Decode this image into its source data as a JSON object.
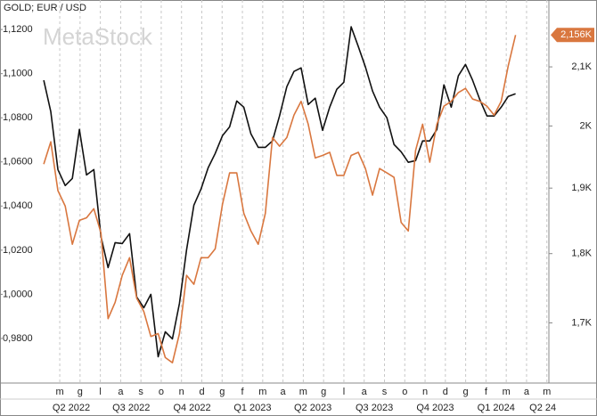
{
  "chart_data": {
    "type": "line",
    "title": "GOLD; EUR / USD",
    "watermark": "MetaStock",
    "x": [
      0.21,
      0.56,
      0.91,
      1.27,
      1.62,
      1.97,
      2.32,
      2.68,
      3.03,
      3.38,
      3.73,
      4.08,
      4.44,
      4.79,
      5.14,
      5.49,
      5.85,
      6.2,
      6.55,
      6.9,
      7.25,
      7.61,
      7.96,
      8.31,
      8.66,
      9.02,
      9.37,
      9.72,
      10.07,
      10.42,
      10.78,
      11.13,
      11.48,
      11.83,
      12.19,
      12.54,
      12.89,
      13.24,
      13.59,
      13.95,
      14.3,
      14.65,
      15.0,
      15.36,
      15.71,
      16.06,
      16.41,
      16.76,
      17.12,
      17.47,
      17.82,
      18.17,
      18.53,
      18.88,
      19.23,
      19.58,
      19.93,
      20.29,
      20.64,
      20.99,
      21.34,
      21.7,
      22.05,
      22.4,
      22.75,
      23.1,
      23.46
    ],
    "xlim": [
      -0.1,
      25.1
    ],
    "xticks": [
      {
        "value": 1,
        "label": "m"
      },
      {
        "value": 2,
        "label": "g"
      },
      {
        "value": 3,
        "label": "l"
      },
      {
        "value": 4,
        "label": "a"
      },
      {
        "value": 5,
        "label": "s"
      },
      {
        "value": 6,
        "label": "o"
      },
      {
        "value": 7,
        "label": "n"
      },
      {
        "value": 8,
        "label": "d"
      },
      {
        "value": 9,
        "label": "g"
      },
      {
        "value": 10,
        "label": "f"
      },
      {
        "value": 11,
        "label": "m"
      },
      {
        "value": 12,
        "label": "a"
      },
      {
        "value": 13,
        "label": "m"
      },
      {
        "value": 14,
        "label": "g"
      },
      {
        "value": 15,
        "label": "l"
      },
      {
        "value": 16,
        "label": "a"
      },
      {
        "value": 17,
        "label": "s"
      },
      {
        "value": 18,
        "label": "o"
      },
      {
        "value": 19,
        "label": "n"
      },
      {
        "value": 20,
        "label": "d"
      },
      {
        "value": 21,
        "label": "g"
      },
      {
        "value": 22,
        "label": "f"
      },
      {
        "value": 23,
        "label": "m"
      },
      {
        "value": 24,
        "label": "a"
      },
      {
        "value": 25,
        "label": "m"
      }
    ],
    "quarter_ticks": [
      {
        "value": 1.57,
        "label": "Q2 2022"
      },
      {
        "value": 4.52,
        "label": "Q3 2022"
      },
      {
        "value": 7.52,
        "label": "Q4 2022"
      },
      {
        "value": 10.5,
        "label": "Q1 2023"
      },
      {
        "value": 13.47,
        "label": "Q2 2023"
      },
      {
        "value": 16.5,
        "label": "Q3 2023"
      },
      {
        "value": 19.5,
        "label": "Q4 2023"
      },
      {
        "value": 22.5,
        "label": "Q1 2024"
      },
      {
        "value": 24.8,
        "label": "Q2 24"
      }
    ],
    "ylim": [
      0.9606,
      1.1261
    ],
    "yticks": [
      {
        "value": 0.98,
        "label": "0,9800"
      },
      {
        "value": 1.0,
        "label": "1,0000"
      },
      {
        "value": 1.02,
        "label": "1,0200"
      },
      {
        "value": 1.04,
        "label": "1,0400"
      },
      {
        "value": 1.06,
        "label": "1,0600"
      },
      {
        "value": 1.08,
        "label": "1,0800"
      },
      {
        "value": 1.1,
        "label": "1,1000"
      },
      {
        "value": 1.12,
        "label": "1,1200"
      }
    ],
    "y2lim": [
      1620,
      2190
    ],
    "y2log": true,
    "y2ticks": [
      {
        "value": 1700,
        "label": "1,7K"
      },
      {
        "value": 1800,
        "label": "1,8K"
      },
      {
        "value": 1900,
        "label": "1,9K"
      },
      {
        "value": 2000,
        "label": "2K"
      },
      {
        "value": 2100,
        "label": "2,1K"
      }
    ],
    "series": [
      {
        "color": "#111111",
        "values": [
          1.097,
          1.0828,
          1.0565,
          1.0493,
          1.0525,
          1.0747,
          1.0541,
          1.0565,
          1.0262,
          1.0121,
          1.0234,
          1.023,
          1.0275,
          0.9988,
          0.9939,
          1.0,
          0.9717,
          0.983,
          0.9798,
          0.9959,
          1.0202,
          1.0404,
          1.0477,
          1.0573,
          1.0638,
          1.0719,
          1.0759,
          1.0876,
          1.0848,
          1.0727,
          1.0666,
          1.0666,
          1.0695,
          1.0808,
          1.0941,
          1.101,
          1.1026,
          1.086,
          1.0889,
          1.0743,
          1.0848,
          1.0929,
          1.0961,
          1.1212,
          1.1123,
          1.103,
          1.0921,
          1.0848,
          1.08,
          1.0679,
          1.0646,
          1.0598,
          1.0606,
          1.0695,
          1.0695,
          1.0747,
          1.0949,
          1.0848,
          1.099,
          1.1042,
          1.097,
          1.0881,
          1.0808,
          1.0808,
          1.0848,
          1.0897,
          1.0909
        ]
      },
      {
        "color": "#d9773f",
        "axis": "y2",
        "values": [
          1938,
          1974,
          1896,
          1872,
          1814,
          1850,
          1854,
          1868,
          1831,
          1706,
          1729,
          1768,
          1794,
          1735,
          1716,
          1681,
          1685,
          1652,
          1645,
          1685,
          1768,
          1755,
          1794,
          1794,
          1807,
          1875,
          1924,
          1924,
          1861,
          1834,
          1814,
          1861,
          1981,
          1967,
          1981,
          2018,
          2041,
          2003,
          1948,
          1952,
          1957,
          1920,
          1920,
          1952,
          1957,
          1931,
          1889,
          1931,
          1924,
          1917,
          1847,
          1834,
          1960,
          2003,
          1941,
          2003,
          2033,
          2041,
          2056,
          2063,
          2045,
          2041,
          2033,
          2018,
          2041,
          2102,
          2156
        ],
        "value_labels": [
          null,
          null,
          null,
          null,
          null,
          null,
          null,
          null,
          null,
          null,
          null,
          null,
          null,
          null,
          null,
          null,
          null,
          null,
          null,
          null,
          null,
          null,
          null,
          null,
          null,
          null,
          null,
          null,
          null,
          null,
          null,
          null,
          null,
          null,
          null,
          null,
          null,
          null,
          null,
          null,
          null,
          null,
          null,
          null,
          null,
          null,
          null,
          null,
          null,
          null,
          null,
          null,
          null,
          null,
          null,
          null,
          null,
          null,
          null,
          null,
          null,
          null,
          null,
          null,
          null,
          null,
          "2,156K"
        ]
      }
    ]
  }
}
